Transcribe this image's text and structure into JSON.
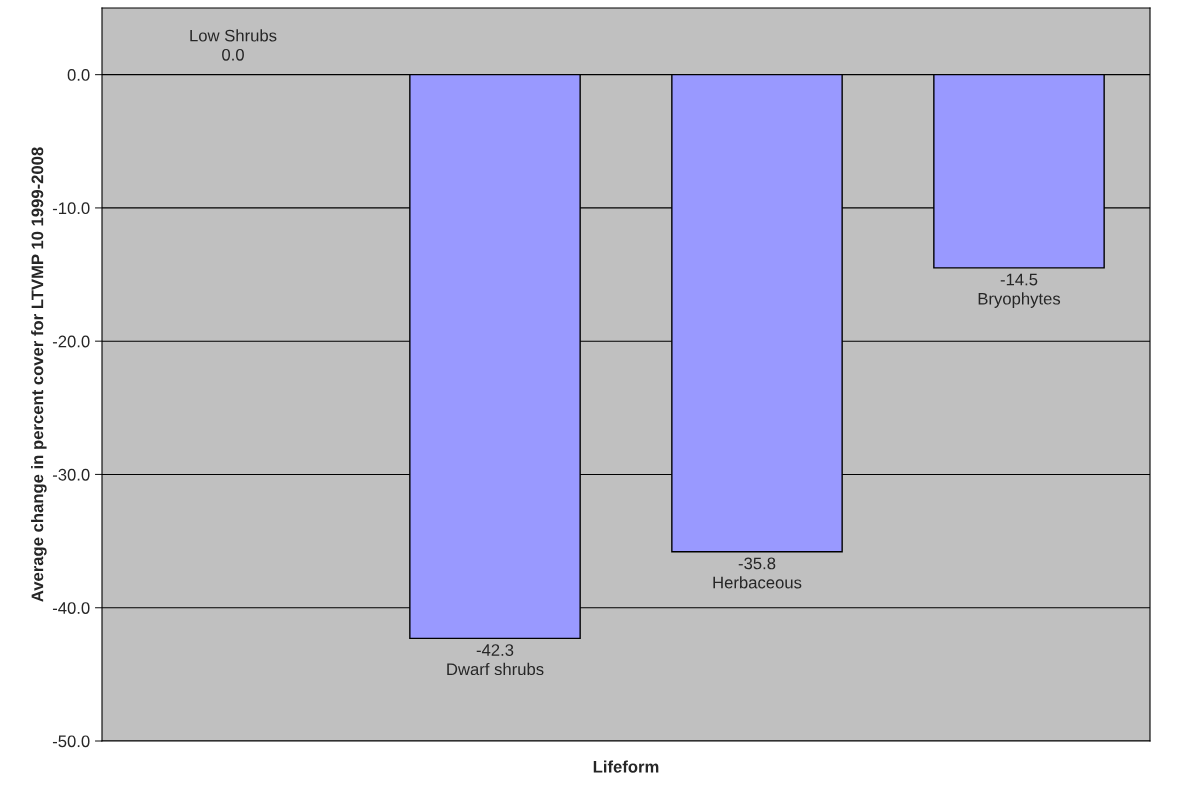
{
  "chart_data": {
    "type": "bar",
    "xlabel": "Lifeform",
    "ylabel": "Average change in percent cover for LTVMP 10 1999-2008",
    "categories": [
      "Low Shrubs",
      "Dwarf shrubs",
      "Herbaceous",
      "Bryophytes"
    ],
    "values": [
      0.0,
      -42.3,
      -35.8,
      -14.5
    ],
    "color": "#9999ff",
    "ylim": [
      -50,
      5
    ],
    "yticks": [
      {
        "value": -50,
        "label": "-50.0"
      },
      {
        "value": -40,
        "label": "-40.0"
      },
      {
        "value": -30,
        "label": "-30.0"
      },
      {
        "value": -20,
        "label": "-20.0"
      },
      {
        "value": -10,
        "label": "-10.0"
      },
      {
        "value": 0,
        "label": "0.0"
      }
    ],
    "value_labels": [
      "0.0",
      "-42.3",
      "-35.8",
      "-14.5"
    ],
    "grid": "y"
  }
}
